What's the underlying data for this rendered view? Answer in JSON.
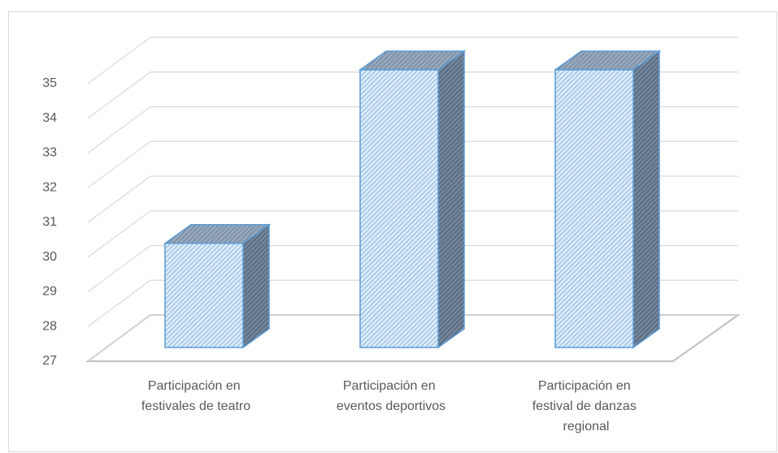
{
  "chart_data": {
    "type": "bar3d",
    "categories": [
      "Participación en festivales de teatro",
      "Participación en eventos deportivos",
      "Participación en festival de danzas regional"
    ],
    "values": [
      30,
      35,
      35
    ],
    "color": "#5b9bd5",
    "ylim": [
      27,
      35
    ],
    "yticks": [
      27,
      28,
      29,
      30,
      31,
      32,
      33,
      34,
      35
    ],
    "grid": true
  }
}
